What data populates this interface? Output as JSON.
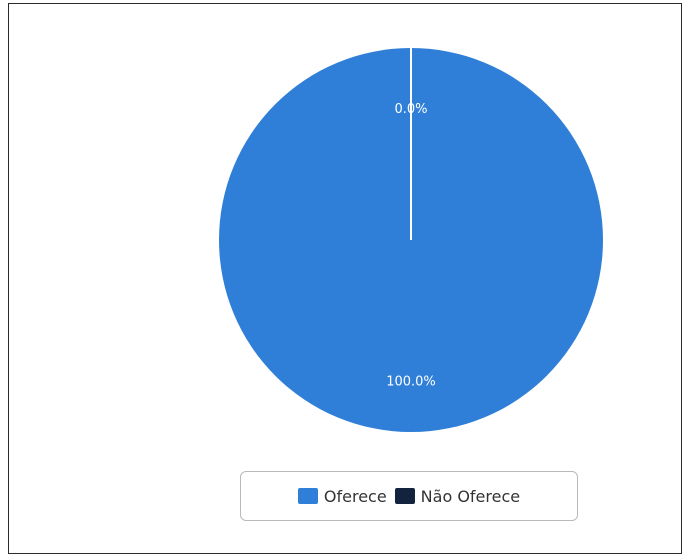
{
  "chart_data": {
    "type": "pie",
    "title": "",
    "slices": [
      {
        "label": "Oferece",
        "value": 100.0,
        "display": "100.0%",
        "color": "#2f7fd8"
      },
      {
        "label": "Não Oferece",
        "value": 0.0,
        "display": "0.0%",
        "color": "#14233d"
      }
    ],
    "legend_position": "bottom-center",
    "slice_border_color": "#ffffff"
  },
  "legend": {
    "items": [
      {
        "label": "Oferece",
        "color": "#2f7fd8"
      },
      {
        "label": "Não Oferece",
        "color": "#14233d"
      }
    ]
  }
}
